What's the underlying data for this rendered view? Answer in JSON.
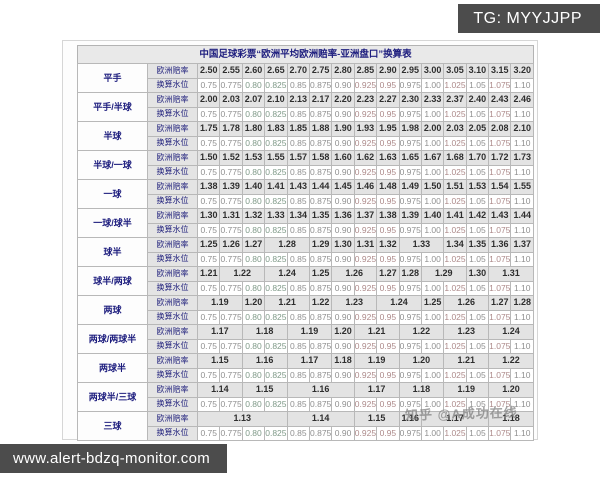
{
  "overlays": {
    "tg_badge": "TG: MYYJJPP",
    "site_banner": "www.alert-bdzq-monitor.com",
    "watermark": "知乎 @A成功在线"
  },
  "table": {
    "title": "中国足球彩票“欧洲平均欧洲赔率-亚洲盘口”换算表",
    "row_labels": {
      "odds": "欧洲赔率",
      "water": "换算水位"
    },
    "water_values": [
      "0.75",
      "0.775",
      "0.80",
      "0.825",
      "0.85",
      "0.875",
      "0.90",
      "0.925",
      "0.95",
      "0.975",
      "1.00",
      "1.025",
      "1.05",
      "1.075",
      "1.10"
    ],
    "groups": [
      {
        "handicap": "平手",
        "odds": [
          [
            "2.50",
            1
          ],
          [
            "2.55",
            1
          ],
          [
            "2.60",
            1
          ],
          [
            "2.65",
            1
          ],
          [
            "2.70",
            1
          ],
          [
            "2.75",
            1
          ],
          [
            "2.80",
            1
          ],
          [
            "2.85",
            1
          ],
          [
            "2.90",
            1
          ],
          [
            "2.95",
            1
          ],
          [
            "3.00",
            1
          ],
          [
            "3.05",
            1
          ],
          [
            "3.10",
            1
          ],
          [
            "3.15",
            1
          ],
          [
            "3.20",
            1
          ]
        ]
      },
      {
        "handicap": "平手/半球",
        "odds": [
          [
            "2.00",
            1
          ],
          [
            "2.03",
            1
          ],
          [
            "2.07",
            1
          ],
          [
            "2.10",
            1
          ],
          [
            "2.13",
            1
          ],
          [
            "2.17",
            1
          ],
          [
            "2.20",
            1
          ],
          [
            "2.23",
            1
          ],
          [
            "2.27",
            1
          ],
          [
            "2.30",
            1
          ],
          [
            "2.33",
            1
          ],
          [
            "2.37",
            1
          ],
          [
            "2.40",
            1
          ],
          [
            "2.43",
            1
          ],
          [
            "2.46",
            1
          ]
        ]
      },
      {
        "handicap": "半球",
        "odds": [
          [
            "1.75",
            1
          ],
          [
            "1.78",
            1
          ],
          [
            "1.80",
            1
          ],
          [
            "1.83",
            1
          ],
          [
            "1.85",
            1
          ],
          [
            "1.88",
            1
          ],
          [
            "1.90",
            1
          ],
          [
            "1.93",
            1
          ],
          [
            "1.95",
            1
          ],
          [
            "1.98",
            1
          ],
          [
            "2.00",
            1
          ],
          [
            "2.03",
            1
          ],
          [
            "2.05",
            1
          ],
          [
            "2.08",
            1
          ],
          [
            "2.10",
            1
          ]
        ]
      },
      {
        "handicap": "半球/一球",
        "odds": [
          [
            "1.50",
            1
          ],
          [
            "1.52",
            1
          ],
          [
            "1.53",
            1
          ],
          [
            "1.55",
            1
          ],
          [
            "1.57",
            1
          ],
          [
            "1.58",
            1
          ],
          [
            "1.60",
            1
          ],
          [
            "1.62",
            1
          ],
          [
            "1.63",
            1
          ],
          [
            "1.65",
            1
          ],
          [
            "1.67",
            1
          ],
          [
            "1.68",
            1
          ],
          [
            "1.70",
            1
          ],
          [
            "1.72",
            1
          ],
          [
            "1.73",
            1
          ]
        ]
      },
      {
        "handicap": "一球",
        "odds": [
          [
            "1.38",
            1
          ],
          [
            "1.39",
            1
          ],
          [
            "1.40",
            1
          ],
          [
            "1.41",
            1
          ],
          [
            "1.43",
            1
          ],
          [
            "1.44",
            1
          ],
          [
            "1.45",
            1
          ],
          [
            "1.46",
            1
          ],
          [
            "1.48",
            1
          ],
          [
            "1.49",
            1
          ],
          [
            "1.50",
            1
          ],
          [
            "1.51",
            1
          ],
          [
            "1.53",
            1
          ],
          [
            "1.54",
            1
          ],
          [
            "1.55",
            1
          ]
        ]
      },
      {
        "handicap": "一球/球半",
        "odds": [
          [
            "1.30",
            1
          ],
          [
            "1.31",
            1
          ],
          [
            "1.32",
            1
          ],
          [
            "1.33",
            1
          ],
          [
            "1.34",
            1
          ],
          [
            "1.35",
            1
          ],
          [
            "1.36",
            1
          ],
          [
            "1.37",
            1
          ],
          [
            "1.38",
            1
          ],
          [
            "1.39",
            1
          ],
          [
            "1.40",
            1
          ],
          [
            "1.41",
            1
          ],
          [
            "1.42",
            1
          ],
          [
            "1.43",
            1
          ],
          [
            "1.44",
            1
          ]
        ]
      },
      {
        "handicap": "球半",
        "odds": [
          [
            "1.25",
            1
          ],
          [
            "1.26",
            1
          ],
          [
            "1.27",
            1
          ],
          [
            "1.28",
            2
          ],
          [
            "1.29",
            1
          ],
          [
            "1.30",
            1
          ],
          [
            "1.31",
            1
          ],
          [
            "1.32",
            1
          ],
          [
            "1.33",
            2
          ],
          [
            "1.34",
            1
          ],
          [
            "1.35",
            1
          ],
          [
            "1.36",
            1
          ],
          [
            "1.37",
            1
          ]
        ]
      },
      {
        "handicap": "球半/两球",
        "odds": [
          [
            "1.21",
            1
          ],
          [
            "1.22",
            2
          ],
          [
            "1.24",
            2
          ],
          [
            "1.25",
            1
          ],
          [
            "1.26",
            2
          ],
          [
            "1.27",
            1
          ],
          [
            "1.28",
            1
          ],
          [
            "1.29",
            2
          ],
          [
            "1.30",
            1
          ],
          [
            "1.31",
            2
          ]
        ]
      },
      {
        "handicap": "两球",
        "odds": [
          [
            "1.19",
            2
          ],
          [
            "1.20",
            1
          ],
          [
            "1.21",
            2
          ],
          [
            "1.22",
            1
          ],
          [
            "1.23",
            2
          ],
          [
            "1.24",
            2
          ],
          [
            "1.25",
            1
          ],
          [
            "1.26",
            2
          ],
          [
            "1.27",
            1
          ],
          [
            "1.28",
            1
          ]
        ]
      },
      {
        "handicap": "两球/两球半",
        "odds": [
          [
            "1.17",
            2
          ],
          [
            "1.18",
            2
          ],
          [
            "1.19",
            2
          ],
          [
            "1.20",
            1
          ],
          [
            "1.21",
            2
          ],
          [
            "1.22",
            2
          ],
          [
            "1.23",
            2
          ],
          [
            "1.24",
            2
          ]
        ]
      },
      {
        "handicap": "两球半",
        "odds": [
          [
            "1.15",
            2
          ],
          [
            "1.16",
            2
          ],
          [
            "1.17",
            2
          ],
          [
            "1.18",
            1
          ],
          [
            "1.19",
            2
          ],
          [
            "1.20",
            2
          ],
          [
            "1.21",
            2
          ],
          [
            "1.22",
            2
          ]
        ]
      },
      {
        "handicap": "两球半/三球",
        "odds": [
          [
            "1.14",
            2
          ],
          [
            "1.15",
            2
          ],
          [
            "1.16",
            3
          ],
          [
            "1.17",
            2
          ],
          [
            "1.18",
            2
          ],
          [
            "1.19",
            2
          ],
          [
            "1.20",
            2
          ]
        ]
      },
      {
        "handicap": "三球",
        "odds": [
          [
            "1.13",
            4
          ],
          [
            "1.14",
            3
          ],
          [
            "1.15",
            2
          ],
          [
            "1.16",
            1
          ],
          [
            "1.17",
            3
          ],
          [
            "1.18",
            2
          ]
        ]
      }
    ]
  }
}
